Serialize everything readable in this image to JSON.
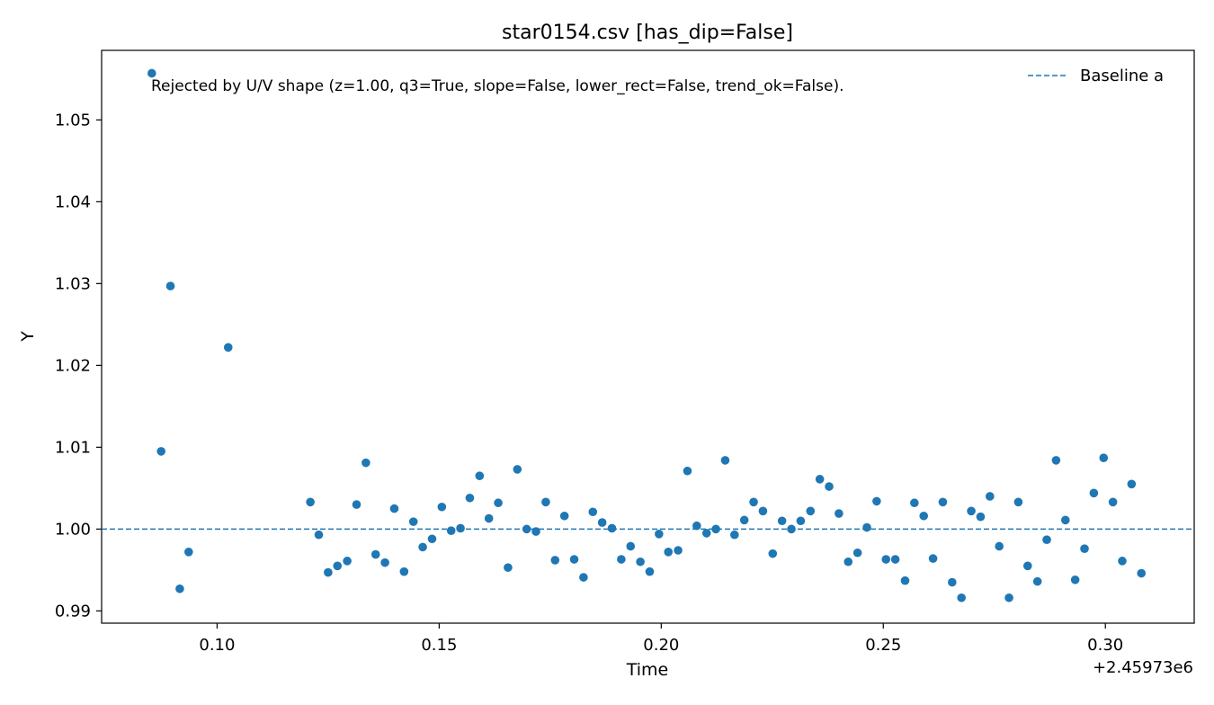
{
  "chart_data": {
    "type": "scatter",
    "title": "star0154.csv [has_dip=False]",
    "xlabel": "Time",
    "ylabel": "Y",
    "x_offset_label": "+2.45973e6",
    "xlim": [
      0.074,
      0.32
    ],
    "ylim": [
      0.9885,
      1.0585
    ],
    "xticks": [
      0.1,
      0.15,
      0.2,
      0.25,
      0.3
    ],
    "xtick_labels": [
      "0.10",
      "0.15",
      "0.20",
      "0.25",
      "0.30"
    ],
    "yticks": [
      0.99,
      1.0,
      1.01,
      1.02,
      1.03,
      1.04,
      1.05
    ],
    "ytick_labels": [
      "0.99",
      "1.00",
      "1.01",
      "1.02",
      "1.03",
      "1.04",
      "1.05"
    ],
    "annotation": "Rejected by U/V shape (z=1.00, q3=True, slope=False, lower_rect=False, trend_ok=False).",
    "baseline": {
      "name": "Baseline a",
      "y": 1.0,
      "color": "#1f77b4",
      "style": "dashed"
    },
    "legend_placement": "top-right",
    "grid": false,
    "marker_color": "#1f77b4",
    "x": [
      0.0853,
      0.0874,
      0.0895,
      0.0916,
      0.0936,
      0.1025,
      0.121,
      0.1229,
      0.125,
      0.1271,
      0.1293,
      0.1314,
      0.1335,
      0.1357,
      0.1378,
      0.1399,
      0.1421,
      0.1442,
      0.1463,
      0.1484,
      0.1506,
      0.1527,
      0.1548,
      0.1569,
      0.1591,
      0.1612,
      0.1633,
      0.1655,
      0.1676,
      0.1697,
      0.1718,
      0.174,
      0.1761,
      0.1782,
      0.1804,
      0.1825,
      0.1846,
      0.1867,
      0.1889,
      0.191,
      0.1931,
      0.1953,
      0.1974,
      0.1995,
      0.2016,
      0.2038,
      0.2059,
      0.208,
      0.2102,
      0.2123,
      0.2144,
      0.2165,
      0.2187,
      0.2208,
      0.2229,
      0.2251,
      0.2272,
      0.2293,
      0.2314,
      0.2336,
      0.2357,
      0.2378,
      0.24,
      0.2421,
      0.2442,
      0.2463,
      0.2485,
      0.2506,
      0.2527,
      0.2549,
      0.257,
      0.2591,
      0.2612,
      0.2634,
      0.2655,
      0.2676,
      0.2698,
      0.2719,
      0.274,
      0.2761,
      0.2783,
      0.2804,
      0.2825,
      0.2847,
      0.2868,
      0.2889,
      0.291,
      0.2932,
      0.2953,
      0.2974,
      0.2996,
      0.3017,
      0.3038,
      0.3059,
      0.3081
    ],
    "y": [
      1.0557,
      1.0095,
      1.0297,
      0.9927,
      0.9972,
      1.0222,
      1.0033,
      0.9993,
      0.9947,
      0.9955,
      0.9961,
      1.003,
      1.0081,
      0.9969,
      0.9959,
      1.0025,
      0.9948,
      1.0009,
      0.9978,
      0.9988,
      1.0027,
      0.9998,
      1.0001,
      1.0038,
      1.0065,
      1.0013,
      1.0032,
      0.9953,
      1.0073,
      1.0,
      0.9997,
      1.0033,
      0.9962,
      1.0016,
      0.9963,
      0.9941,
      1.0021,
      1.0008,
      1.0001,
      0.9963,
      0.9979,
      0.996,
      0.9948,
      0.9994,
      0.9972,
      0.9974,
      1.0071,
      1.0004,
      0.9995,
      1.0,
      1.0084,
      0.9993,
      1.0011,
      1.0033,
      1.0022,
      0.997,
      1.001,
      1.0,
      1.001,
      1.0022,
      1.0061,
      1.0052,
      1.0019,
      0.996,
      0.9971,
      1.0002,
      1.0034,
      0.9963,
      0.9963,
      0.9937,
      1.0032,
      1.0016,
      0.9964,
      1.0033,
      0.9935,
      0.9916,
      1.0022,
      1.0015,
      1.004,
      0.9979,
      0.9916,
      1.0033,
      0.9955,
      0.9936,
      0.9987,
      1.0084,
      1.0011,
      0.9938,
      0.9976,
      1.0044,
      1.0087,
      1.0033,
      0.9961,
      1.0055,
      0.9946
    ]
  }
}
